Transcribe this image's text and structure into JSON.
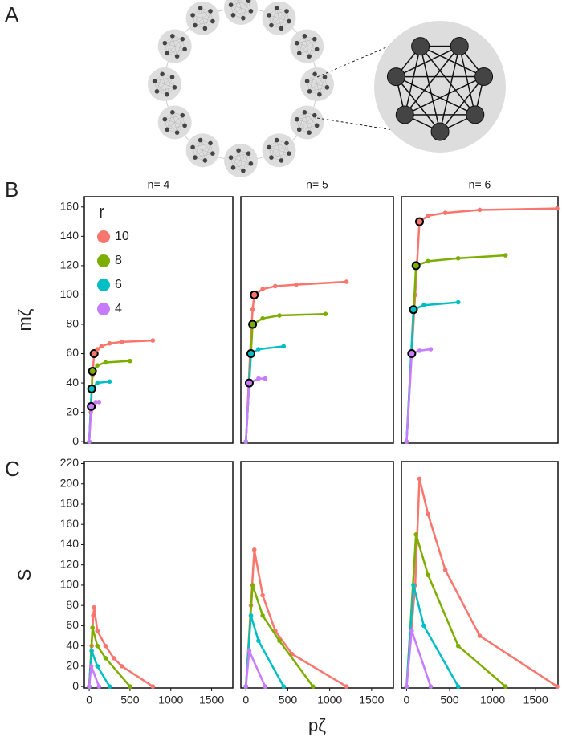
{
  "panel_labels": [
    "A",
    "B",
    "C"
  ],
  "chart_data": [
    {
      "type": "line",
      "title": "n= 4",
      "ylabel": "mζ",
      "legend_title": "r",
      "legend": "top-left",
      "xlim": [
        -60,
        1760
      ],
      "ylim": [
        -1,
        167
      ],
      "yticks": [
        0,
        20,
        40,
        60,
        80,
        100,
        120,
        140,
        160
      ],
      "series": [
        {
          "name": "10",
          "color": "#f8766d",
          "x": [
            0,
            20,
            40,
            60,
            100,
            150,
            250,
            400,
            780
          ],
          "values": [
            0,
            20,
            45,
            60,
            63,
            65,
            67,
            68,
            69
          ],
          "highlight": 3
        },
        {
          "name": "8",
          "color": "#7cae00",
          "x": [
            0,
            40,
            100,
            200,
            500
          ],
          "values": [
            0,
            48,
            52,
            54,
            55
          ],
          "highlight": 1
        },
        {
          "name": "6",
          "color": "#00bfc4",
          "x": [
            0,
            30,
            100,
            250
          ],
          "values": [
            0,
            36,
            40,
            41
          ],
          "highlight": 1
        },
        {
          "name": "4",
          "color": "#c77cff",
          "x": [
            0,
            25,
            80,
            120
          ],
          "values": [
            0,
            24,
            27,
            27
          ],
          "highlight": 1
        }
      ]
    },
    {
      "type": "line",
      "title": "n= 5",
      "xlim": [
        -60,
        1760
      ],
      "ylim": [
        -1,
        167
      ],
      "series": [
        {
          "color": "#f8766d",
          "x": [
            0,
            50,
            80,
            100,
            200,
            350,
            600,
            1200
          ],
          "values": [
            0,
            60,
            90,
            100,
            104,
            106,
            107,
            109
          ],
          "highlight": 3
        },
        {
          "color": "#7cae00",
          "x": [
            0,
            80,
            200,
            400,
            950
          ],
          "values": [
            0,
            80,
            84,
            86,
            87
          ],
          "highlight": 1
        },
        {
          "color": "#00bfc4",
          "x": [
            0,
            60,
            150,
            450
          ],
          "values": [
            0,
            60,
            63,
            65
          ],
          "highlight": 1
        },
        {
          "color": "#c77cff",
          "x": [
            0,
            40,
            150,
            230
          ],
          "values": [
            0,
            40,
            43,
            43
          ],
          "highlight": 1
        }
      ]
    },
    {
      "type": "line",
      "title": "n= 6",
      "xlim": [
        -60,
        1760
      ],
      "ylim": [
        -1,
        167
      ],
      "series": [
        {
          "color": "#f8766d",
          "x": [
            0,
            100,
            150,
            250,
            450,
            850,
            1750
          ],
          "values": [
            0,
            100,
            150,
            154,
            156,
            158,
            159
          ],
          "highlight": 2
        },
        {
          "color": "#7cae00",
          "x": [
            0,
            110,
            250,
            600,
            1150
          ],
          "values": [
            0,
            120,
            123,
            125,
            127
          ],
          "highlight": 1
        },
        {
          "color": "#00bfc4",
          "x": [
            0,
            80,
            200,
            600
          ],
          "values": [
            0,
            90,
            93,
            95
          ],
          "highlight": 1
        },
        {
          "color": "#c77cff",
          "x": [
            0,
            60,
            150,
            280
          ],
          "values": [
            0,
            60,
            62,
            63
          ],
          "highlight": 1
        }
      ]
    },
    {
      "type": "line",
      "ylabel": "S",
      "xlim": [
        -60,
        1760
      ],
      "ylim": [
        -1.5,
        222
      ],
      "xticks": [
        0,
        500,
        1000,
        1500
      ],
      "yticks": [
        0,
        20,
        40,
        60,
        80,
        100,
        120,
        140,
        160,
        180,
        200,
        220
      ],
      "series": [
        {
          "color": "#f8766d",
          "x": [
            0,
            30,
            50,
            60,
            100,
            200,
            300,
            400,
            780
          ],
          "values": [
            0,
            40,
            70,
            78,
            55,
            40,
            28,
            20,
            0
          ]
        },
        {
          "color": "#7cae00",
          "x": [
            0,
            40,
            100,
            200,
            500
          ],
          "values": [
            0,
            58,
            40,
            28,
            0
          ]
        },
        {
          "color": "#00bfc4",
          "x": [
            0,
            30,
            100,
            250
          ],
          "values": [
            0,
            35,
            20,
            0
          ]
        },
        {
          "color": "#c77cff",
          "x": [
            0,
            25,
            120
          ],
          "values": [
            0,
            20,
            0
          ]
        }
      ]
    },
    {
      "type": "line",
      "xlabel": "pζ",
      "xlim": [
        -60,
        1760
      ],
      "ylim": [
        -1.5,
        222
      ],
      "xticks": [
        0,
        500,
        1000,
        1500
      ],
      "series": [
        {
          "color": "#f8766d",
          "x": [
            0,
            60,
            100,
            200,
            350,
            550,
            1200
          ],
          "values": [
            0,
            80,
            135,
            90,
            55,
            32,
            0
          ]
        },
        {
          "color": "#7cae00",
          "x": [
            0,
            80,
            200,
            400,
            800
          ],
          "values": [
            0,
            100,
            70,
            45,
            0
          ]
        },
        {
          "color": "#00bfc4",
          "x": [
            0,
            60,
            150,
            450
          ],
          "values": [
            0,
            70,
            45,
            0
          ]
        },
        {
          "color": "#c77cff",
          "x": [
            0,
            40,
            230
          ],
          "values": [
            0,
            35,
            0
          ]
        }
      ]
    },
    {
      "type": "line",
      "xlim": [
        -60,
        1760
      ],
      "ylim": [
        -1.5,
        222
      ],
      "xticks": [
        0,
        500,
        1000,
        1500
      ],
      "series": [
        {
          "color": "#f8766d",
          "x": [
            0,
            100,
            150,
            250,
            450,
            850,
            1750
          ],
          "values": [
            0,
            100,
            205,
            170,
            115,
            50,
            0
          ]
        },
        {
          "color": "#7cae00",
          "x": [
            0,
            110,
            250,
            600,
            1150
          ],
          "values": [
            0,
            150,
            110,
            40,
            0
          ]
        },
        {
          "color": "#00bfc4",
          "x": [
            0,
            80,
            200,
            600
          ],
          "values": [
            0,
            100,
            60,
            0
          ]
        },
        {
          "color": "#c77cff",
          "x": [
            0,
            60,
            280
          ],
          "values": [
            0,
            55,
            0
          ]
        }
      ]
    }
  ]
}
